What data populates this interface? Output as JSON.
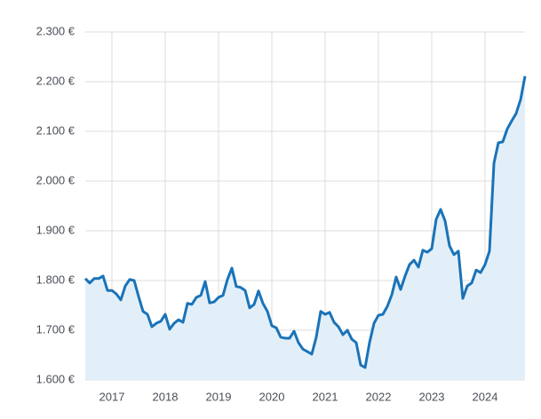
{
  "chart_data": {
    "type": "area",
    "x": [
      2016.5,
      2016.583,
      2016.667,
      2016.75,
      2016.833,
      2016.917,
      2017.0,
      2017.083,
      2017.167,
      2017.25,
      2017.333,
      2017.417,
      2017.5,
      2017.583,
      2017.667,
      2017.75,
      2017.833,
      2017.917,
      2018.0,
      2018.083,
      2018.167,
      2018.25,
      2018.333,
      2018.417,
      2018.5,
      2018.583,
      2018.667,
      2018.75,
      2018.833,
      2018.917,
      2019.0,
      2019.083,
      2019.167,
      2019.25,
      2019.333,
      2019.417,
      2019.5,
      2019.583,
      2019.667,
      2019.75,
      2019.833,
      2019.917,
      2020.0,
      2020.083,
      2020.167,
      2020.25,
      2020.333,
      2020.417,
      2020.5,
      2020.583,
      2020.667,
      2020.75,
      2020.833,
      2020.917,
      2021.0,
      2021.083,
      2021.167,
      2021.25,
      2021.333,
      2021.417,
      2021.5,
      2021.583,
      2021.667,
      2021.75,
      2021.833,
      2021.917,
      2022.0,
      2022.083,
      2022.167,
      2022.25,
      2022.333,
      2022.417,
      2022.5,
      2022.583,
      2022.667,
      2022.75,
      2022.833,
      2022.917,
      2023.0,
      2023.083,
      2023.167,
      2023.25,
      2023.333,
      2023.417,
      2023.5,
      2023.583,
      2023.667,
      2023.75,
      2023.833,
      2023.917,
      2024.0,
      2024.083,
      2024.167,
      2024.25,
      2024.333,
      2024.417,
      2024.5,
      2024.583,
      2024.667,
      2024.75
    ],
    "values": [
      1804,
      1795,
      1804,
      1804,
      1809,
      1780,
      1780,
      1773,
      1761,
      1789,
      1802,
      1800,
      1768,
      1738,
      1732,
      1707,
      1714,
      1718,
      1732,
      1702,
      1714,
      1721,
      1716,
      1754,
      1752,
      1766,
      1770,
      1798,
      1755,
      1757,
      1766,
      1770,
      1802,
      1825,
      1788,
      1786,
      1780,
      1745,
      1752,
      1779,
      1754,
      1738,
      1709,
      1705,
      1686,
      1684,
      1684,
      1698,
      1675,
      1662,
      1657,
      1652,
      1686,
      1738,
      1732,
      1736,
      1716,
      1707,
      1691,
      1700,
      1682,
      1675,
      1630,
      1625,
      1675,
      1714,
      1730,
      1732,
      1748,
      1771,
      1807,
      1782,
      1809,
      1832,
      1841,
      1827,
      1861,
      1857,
      1864,
      1923,
      1943,
      1920,
      1870,
      1852,
      1859,
      1764,
      1789,
      1795,
      1821,
      1816,
      1832,
      1859,
      2036,
      2077,
      2079,
      2105,
      2121,
      2136,
      2164,
      2211
    ],
    "color": "#1a73b8",
    "fill_color": "#e3eff8",
    "xlim": [
      2016.5,
      2024.75
    ],
    "xticks": [
      2017,
      2018,
      2019,
      2020,
      2021,
      2022,
      2023,
      2024
    ],
    "ylim": [
      1600,
      2300
    ],
    "yticks": [
      {
        "value": 1600,
        "label": "1.600 €"
      },
      {
        "value": 1700,
        "label": "1.700 €"
      },
      {
        "value": 1800,
        "label": "1.800 €"
      },
      {
        "value": 1900,
        "label": "1.900 €"
      },
      {
        "value": 2000,
        "label": "2.000 €"
      },
      {
        "value": 2100,
        "label": "2.100 €"
      },
      {
        "value": 2200,
        "label": "2.200 €"
      },
      {
        "value": 2300,
        "label": "2.300 €"
      }
    ],
    "grid": true
  }
}
